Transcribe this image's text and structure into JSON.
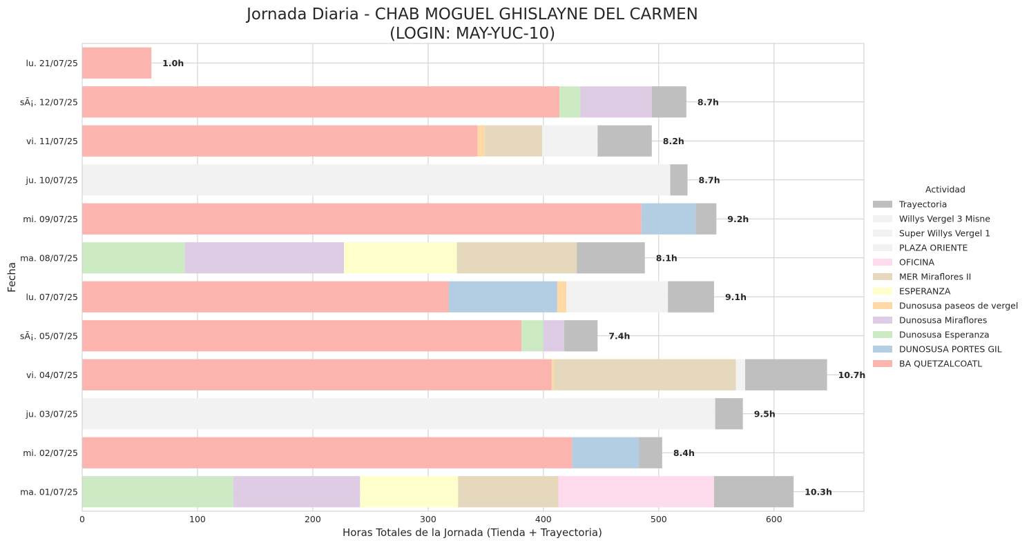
{
  "chart_data": {
    "type": "bar",
    "orientation": "horizontal",
    "stacked": true,
    "title_line1": "Jornada Diaria - CHAB MOGUEL GHISLAYNE DEL CARMEN",
    "title_line2": "(LOGIN: MAY-YUC-10)",
    "xlabel": "Horas Totales de la Jornada (Tienda + Trayectoria)",
    "ylabel": "Fecha",
    "xlim": [
      0,
      678
    ],
    "xticks": [
      0,
      100,
      200,
      300,
      400,
      500,
      600
    ],
    "grid": true,
    "legend": {
      "title": "Actividad",
      "placement": "right",
      "entries": [
        {
          "name": "Trayectoria",
          "color": "#bfbfbf"
        },
        {
          "name": "Willys Vergel 3 Misne",
          "color": "#f2f2f2"
        },
        {
          "name": "Super Willys Vergel 1",
          "color": "#f2f2f2"
        },
        {
          "name": "PLAZA ORIENTE",
          "color": "#f2f2f2"
        },
        {
          "name": "OFICINA",
          "color": "#fddaec"
        },
        {
          "name": "MER Miraflores II",
          "color": "#e5d8bd"
        },
        {
          "name": "ESPERANZA",
          "color": "#ffffcc"
        },
        {
          "name": "Dunosusa paseos de vergel",
          "color": "#fed9a6"
        },
        {
          "name": "Dunosusa Miraflores",
          "color": "#decbe4"
        },
        {
          "name": "Dunosusa Esperanza",
          "color": "#ccebc5"
        },
        {
          "name": "DUNOSUSA PORTES GIL",
          "color": "#b3cde3"
        },
        {
          "name": "BA QUETZALCOATL",
          "color": "#fbb4ae"
        }
      ]
    },
    "rows": [
      {
        "date": "lu. 21/07/25",
        "total_label": "1.0h",
        "segments": [
          {
            "activity": "BA QUETZALCOATL",
            "value": 60
          }
        ]
      },
      {
        "date": "sÃ¡. 12/07/25",
        "total_label": "8.7h",
        "segments": [
          {
            "activity": "BA QUETZALCOATL",
            "value": 414
          },
          {
            "activity": "Dunosusa Esperanza",
            "value": 18
          },
          {
            "activity": "Dunosusa Miraflores",
            "value": 62
          },
          {
            "activity": "Trayectoria",
            "value": 30
          }
        ]
      },
      {
        "date": "vi. 11/07/25",
        "total_label": "8.2h",
        "segments": [
          {
            "activity": "BA QUETZALCOATL",
            "value": 343
          },
          {
            "activity": "Dunosusa paseos de vergel",
            "value": 6
          },
          {
            "activity": "MER Miraflores II",
            "value": 50
          },
          {
            "activity": "PLAZA ORIENTE",
            "value": 48
          },
          {
            "activity": "Trayectoria",
            "value": 47
          }
        ]
      },
      {
        "date": "ju. 10/07/25",
        "total_label": "8.7h",
        "segments": [
          {
            "activity": "PLAZA ORIENTE",
            "value": 510
          },
          {
            "activity": "Trayectoria",
            "value": 15
          }
        ]
      },
      {
        "date": "mi. 09/07/25",
        "total_label": "9.2h",
        "segments": [
          {
            "activity": "BA QUETZALCOATL",
            "value": 485
          },
          {
            "activity": "DUNOSUSA PORTES GIL",
            "value": 47
          },
          {
            "activity": "Trayectoria",
            "value": 18
          }
        ]
      },
      {
        "date": "ma. 08/07/25",
        "total_label": "8.1h",
        "segments": [
          {
            "activity": "Dunosusa Esperanza",
            "value": 89
          },
          {
            "activity": "Dunosusa Miraflores",
            "value": 138
          },
          {
            "activity": "ESPERANZA",
            "value": 98
          },
          {
            "activity": "MER Miraflores II",
            "value": 104
          },
          {
            "activity": "Trayectoria",
            "value": 59
          }
        ]
      },
      {
        "date": "lu. 07/07/25",
        "total_label": "9.1h",
        "segments": [
          {
            "activity": "BA QUETZALCOATL",
            "value": 318
          },
          {
            "activity": "DUNOSUSA PORTES GIL",
            "value": 94
          },
          {
            "activity": "Dunosusa paseos de vergel",
            "value": 8
          },
          {
            "activity": "PLAZA ORIENTE",
            "value": 88
          },
          {
            "activity": "Trayectoria",
            "value": 40
          }
        ]
      },
      {
        "date": "sÃ¡. 05/07/25",
        "total_label": "7.4h",
        "segments": [
          {
            "activity": "BA QUETZALCOATL",
            "value": 381
          },
          {
            "activity": "Dunosusa Esperanza",
            "value": 19
          },
          {
            "activity": "Dunosusa Miraflores",
            "value": 18
          },
          {
            "activity": "Trayectoria",
            "value": 29
          }
        ]
      },
      {
        "date": "vi. 04/07/25",
        "total_label": "10.7h",
        "segments": [
          {
            "activity": "BA QUETZALCOATL",
            "value": 407
          },
          {
            "activity": "Dunosusa paseos de vergel",
            "value": 2
          },
          {
            "activity": "MER Miraflores II",
            "value": 158
          },
          {
            "activity": "Super Willys Vergel 1",
            "value": 8
          },
          {
            "activity": "Trayectoria",
            "value": 71
          }
        ]
      },
      {
        "date": "ju. 03/07/25",
        "total_label": "9.5h",
        "segments": [
          {
            "activity": "Willys Vergel 3 Misne",
            "value": 549
          },
          {
            "activity": "Trayectoria",
            "value": 24
          }
        ]
      },
      {
        "date": "mi. 02/07/25",
        "total_label": "8.4h",
        "segments": [
          {
            "activity": "BA QUETZALCOATL",
            "value": 425
          },
          {
            "activity": "DUNOSUSA PORTES GIL",
            "value": 58
          },
          {
            "activity": "Trayectoria",
            "value": 20
          }
        ]
      },
      {
        "date": "ma. 01/07/25",
        "total_label": "10.3h",
        "segments": [
          {
            "activity": "Dunosusa Esperanza",
            "value": 131
          },
          {
            "activity": "Dunosusa Miraflores",
            "value": 110
          },
          {
            "activity": "ESPERANZA",
            "value": 85
          },
          {
            "activity": "MER Miraflores II",
            "value": 87
          },
          {
            "activity": "OFICINA",
            "value": 135
          },
          {
            "activity": "Trayectoria",
            "value": 69
          }
        ]
      }
    ]
  }
}
